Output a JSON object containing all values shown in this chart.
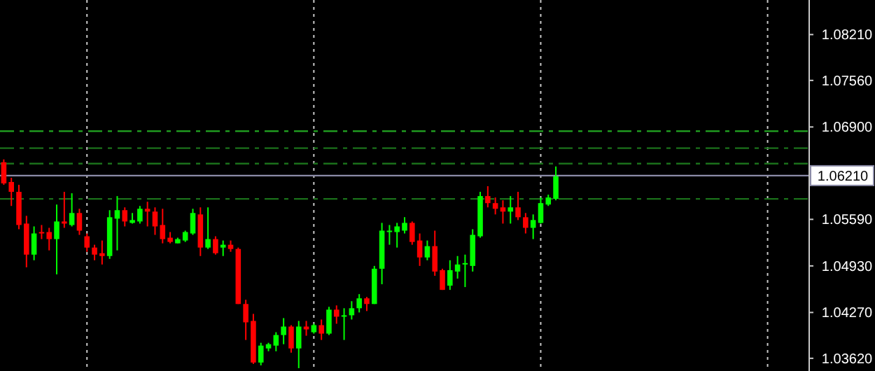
{
  "chart_data": {
    "type": "candlestick",
    "categories": [
      null,
      null,
      null,
      null,
      null,
      null,
      null,
      null,
      null,
      null,
      null,
      null,
      null,
      null,
      null,
      null,
      null,
      null,
      null,
      null,
      null,
      null,
      null,
      null,
      null,
      null,
      null,
      null,
      null,
      null,
      null,
      null,
      null,
      null,
      null,
      null,
      null,
      null,
      null,
      null,
      null,
      null,
      null,
      null,
      null,
      null,
      null,
      null,
      null,
      null,
      null,
      null,
      null,
      null,
      null,
      null,
      null,
      null,
      null,
      null,
      null,
      null,
      null,
      null,
      null,
      null,
      null,
      null,
      null,
      null,
      null,
      null,
      null,
      null,
      null,
      null,
      null,
      null,
      null,
      null,
      null,
      null,
      null,
      null,
      null,
      null,
      null,
      null,
      null,
      null,
      null,
      null,
      null,
      null,
      null,
      null,
      null,
      null,
      null,
      null,
      null,
      null,
      null,
      null,
      null,
      null,
      null
    ],
    "ohlc": [
      [
        1.064,
        1.0644,
        1.0608,
        1.061
      ],
      [
        1.0612,
        1.0618,
        1.0578,
        1.0598
      ],
      [
        1.0598,
        1.0608,
        1.0545,
        1.0551
      ],
      [
        1.0553,
        1.0564,
        1.0491,
        1.0509
      ],
      [
        1.0509,
        1.0549,
        1.0501,
        1.0539
      ],
      [
        1.0541,
        1.0551,
        1.0531,
        1.0539
      ],
      [
        1.0541,
        1.0547,
        1.0515,
        1.0531
      ],
      [
        1.0531,
        1.058,
        1.0481,
        1.0556
      ],
      [
        1.0556,
        1.0598,
        1.0547,
        1.0553
      ],
      [
        1.0551,
        1.0596,
        1.0549,
        1.0568
      ],
      [
        1.0568,
        1.0574,
        1.0537,
        1.0543
      ],
      [
        1.0535,
        1.0539,
        1.0513,
        1.0519
      ],
      [
        1.0519,
        1.0523,
        1.0501,
        1.0509
      ],
      [
        1.0511,
        1.0529,
        1.0495,
        1.0507
      ],
      [
        1.0507,
        1.0572,
        1.0503,
        1.0562
      ],
      [
        1.056,
        1.0592,
        1.0515,
        1.0572
      ],
      [
        1.0572,
        1.0576,
        1.0549,
        1.0556
      ],
      [
        1.0554,
        1.0568,
        1.0553,
        1.0558
      ],
      [
        1.0556,
        1.0578,
        1.0553,
        1.0574
      ],
      [
        1.0574,
        1.0584,
        1.0549,
        1.057
      ],
      [
        1.057,
        1.0576,
        1.0537,
        1.0549
      ],
      [
        1.0551,
        1.0574,
        1.0525,
        1.0531
      ],
      [
        1.0533,
        1.0541,
        1.0525,
        1.0527
      ],
      [
        1.0525,
        1.0533,
        1.0525,
        1.0531
      ],
      [
        1.0529,
        1.0543,
        1.0527,
        1.0541
      ],
      [
        1.0539,
        1.0574,
        1.0537,
        1.0568
      ],
      [
        1.0566,
        1.0576,
        1.0507,
        1.0519
      ],
      [
        1.0519,
        1.0576,
        1.0517,
        1.0531
      ],
      [
        1.0531,
        1.0535,
        1.0509,
        1.0511
      ],
      [
        1.0519,
        1.0529,
        1.0507,
        1.0523
      ],
      [
        1.0523,
        1.0529,
        1.0513,
        1.0517
      ],
      [
        1.0517,
        1.0519,
        1.0439,
        1.0439
      ],
      [
        1.0439,
        1.0445,
        1.0388,
        1.0413
      ],
      [
        1.0415,
        1.0425,
        1.0354,
        1.0356
      ],
      [
        1.0356,
        1.0384,
        1.0352,
        1.038
      ],
      [
        1.0376,
        1.0384,
        1.0372,
        1.0382
      ],
      [
        1.038,
        1.0399,
        1.0372,
        1.0395
      ],
      [
        1.0395,
        1.0419,
        1.0382,
        1.0407
      ],
      [
        1.0407,
        1.0409,
        1.037,
        1.0376
      ],
      [
        1.0376,
        1.0415,
        1.0348,
        1.0407
      ],
      [
        1.0407,
        1.0415,
        1.0394,
        1.0403
      ],
      [
        1.0399,
        1.0411,
        1.0397,
        1.0409
      ],
      [
        1.0409,
        1.0417,
        1.0388,
        1.0397
      ],
      [
        1.0397,
        1.0435,
        1.0395,
        1.0431
      ],
      [
        1.0431,
        1.0437,
        1.0411,
        1.0421
      ],
      [
        1.0421,
        1.0433,
        1.0388,
        1.0423
      ],
      [
        1.0423,
        1.0443,
        1.0417,
        1.0433
      ],
      [
        1.0433,
        1.0453,
        1.0427,
        1.0447
      ],
      [
        1.0447,
        1.0449,
        1.0429,
        1.0439
      ],
      [
        1.0439,
        1.0493,
        1.0439,
        1.0489
      ],
      [
        1.0489,
        1.0554,
        1.0467,
        1.0543
      ],
      [
        1.0541,
        1.0551,
        1.0523,
        1.0543
      ],
      [
        1.0541,
        1.0554,
        1.0519,
        1.0549
      ],
      [
        1.0543,
        1.0562,
        1.0539,
        1.0554
      ],
      [
        1.0554,
        1.0556,
        1.0523,
        1.0527
      ],
      [
        1.0529,
        1.0539,
        1.0493,
        1.0505
      ],
      [
        1.0505,
        1.0529,
        1.0501,
        1.0521
      ],
      [
        1.0521,
        1.0543,
        1.0479,
        1.0485
      ],
      [
        1.0487,
        1.0489,
        1.0459,
        1.0459
      ],
      [
        1.0465,
        1.0501,
        1.0459,
        1.0487
      ],
      [
        1.0485,
        1.0507,
        1.0475,
        1.0495
      ],
      [
        1.0495,
        1.0509,
        1.0463,
        1.0497
      ],
      [
        1.0493,
        1.0545,
        1.0485,
        1.0537
      ],
      [
        1.0535,
        1.0598,
        1.0533,
        1.0592
      ],
      [
        1.0592,
        1.0606,
        1.0576,
        1.0582
      ],
      [
        1.0582,
        1.059,
        1.0566,
        1.0574
      ],
      [
        1.0576,
        1.0586,
        1.0553,
        1.057
      ],
      [
        1.057,
        1.0592,
        1.0553,
        1.0576
      ],
      [
        1.0576,
        1.0598,
        1.0558,
        1.0562
      ],
      [
        1.0562,
        1.0568,
        1.0539,
        1.0547
      ],
      [
        1.0547,
        1.0566,
        1.0531,
        1.0558
      ],
      [
        1.0554,
        1.059,
        1.0553,
        1.0582
      ],
      [
        1.058,
        1.0594,
        1.0578,
        1.059
      ],
      [
        1.0588,
        1.0634,
        1.0586,
        1.062
      ],
      null,
      null,
      null,
      null,
      null,
      null,
      null,
      null,
      null,
      null,
      null,
      null,
      null,
      null,
      null,
      null,
      null,
      null,
      null,
      null,
      null,
      null,
      null,
      null,
      null,
      null,
      null,
      null,
      null,
      null,
      null,
      null,
      null
    ],
    "colors": [
      "#ff0000",
      "#ff0000",
      "#ff0000",
      "#ff0000",
      "#00ff00",
      "#ff0000",
      "#ff0000",
      "#00ff00",
      "#ff0000",
      "#00ff00",
      "#ff0000",
      "#ff0000",
      "#ff0000",
      "#ff0000",
      "#00ff00",
      "#00ff00",
      "#ff0000",
      "#00ff00",
      "#00ff00",
      "#ff0000",
      "#ff0000",
      "#ff0000",
      "#ff0000",
      "#00ff00",
      "#00ff00",
      "#00ff00",
      "#ff0000",
      "#00ff00",
      "#ff0000",
      "#00ff00",
      "#ff0000",
      "#ff0000",
      "#ff0000",
      "#ff0000",
      "#00ff00",
      "#00ff00",
      "#00ff00",
      "#00ff00",
      "#ff0000",
      "#00ff00",
      "#ff0000",
      "#00ff00",
      "#ff0000",
      "#00ff00",
      "#ff0000",
      "#00ff00",
      "#00ff00",
      "#00ff00",
      "#ff0000",
      "#00ff00",
      "#00ff00",
      "#00ff00",
      "#00ff00",
      "#00ff00",
      "#ff0000",
      "#ff0000",
      "#00ff00",
      "#ff0000",
      "#ff0000",
      "#00ff00",
      "#00ff00",
      "#00ff00",
      "#00ff00",
      "#00ff00",
      "#ff0000",
      "#ff0000",
      "#ff0000",
      "#00ff00",
      "#ff0000",
      "#ff0000",
      "#00ff00",
      "#00ff00",
      "#00ff00",
      "#00ff00",
      null,
      null,
      null,
      null,
      null,
      null,
      null,
      null,
      null,
      null,
      null,
      null,
      null,
      null,
      null,
      null,
      null,
      null,
      null,
      null,
      null,
      null,
      null,
      null,
      null,
      null,
      null,
      null,
      null,
      null,
      null,
      null,
      null
    ],
    "grid": "x",
    "ylim": [
      1.0344,
      1.087
    ],
    "yticks": [
      {
        "value": 1.0821,
        "label": "1.08210"
      },
      {
        "value": 1.0756,
        "label": "1.07560"
      },
      {
        "value": 1.069,
        "label": "1.06900"
      },
      {
        "value": 1.0559,
        "label": "1.05590"
      },
      {
        "value": 1.0493,
        "label": "1.04930"
      },
      {
        "value": 1.0427,
        "label": "1.04270"
      },
      {
        "value": 1.0362,
        "label": "1.03620"
      }
    ],
    "ref_lines": [
      {
        "axis": "y",
        "value": 1.0684,
        "color": "#22a822",
        "line_style": "dashed"
      },
      {
        "axis": "y",
        "value": 1.066,
        "color": "#1a701a",
        "line_style": "dashed"
      },
      {
        "axis": "y",
        "value": 1.0638,
        "color": "#1a701a",
        "line_style": "dashed"
      },
      {
        "axis": "y",
        "value": 1.0588,
        "color": "#1a701a",
        "line_style": "dashed"
      },
      {
        "axis": "y",
        "value": 1.0621,
        "label": "1.06210",
        "color": "#8c8ca8",
        "line_style": "solid"
      }
    ]
  }
}
